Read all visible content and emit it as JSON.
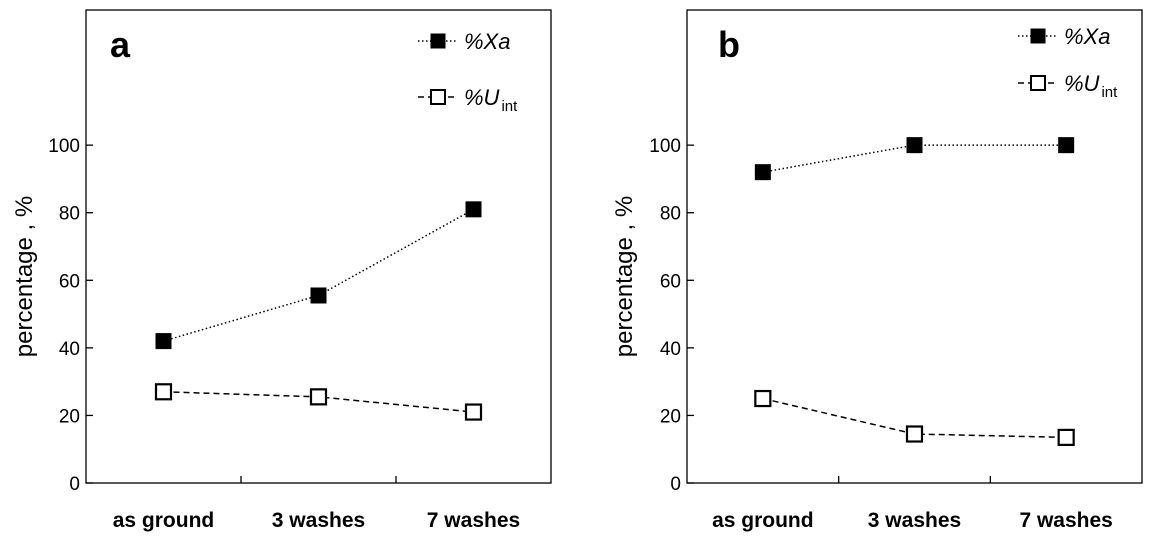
{
  "chart_data": [
    {
      "type": "line",
      "panel_label": "a",
      "categories": [
        "as ground",
        "3 washes",
        "7 washes"
      ],
      "series": [
        {
          "name": "%Xa",
          "name_main": "%Xa",
          "name_sub": "",
          "values": [
            42,
            55.5,
            81
          ],
          "marker": "filled-square",
          "line": "dotted"
        },
        {
          "name": "%Uint",
          "name_main": "%U",
          "name_sub": "int",
          "values": [
            27,
            25.5,
            21
          ],
          "marker": "open-square",
          "line": "dashed"
        }
      ],
      "ylabel": "percentage , %",
      "yticks": [
        0,
        20,
        40,
        60,
        80,
        100
      ],
      "ylim": [
        0,
        140
      ],
      "legend_position": "top-right",
      "grid": false
    },
    {
      "type": "line",
      "panel_label": "b",
      "categories": [
        "as ground",
        "3 washes",
        "7 washes"
      ],
      "series": [
        {
          "name": "%Xa",
          "name_main": "%Xa",
          "name_sub": "",
          "values": [
            92,
            100,
            100
          ],
          "marker": "filled-square",
          "line": "dotted"
        },
        {
          "name": "%Uint",
          "name_main": "%U",
          "name_sub": "int",
          "values": [
            25,
            14.5,
            13.5
          ],
          "marker": "open-square",
          "line": "dashed"
        }
      ],
      "ylabel": "percentage , %",
      "yticks": [
        0,
        20,
        40,
        60,
        80,
        100
      ],
      "ylim": [
        0,
        140
      ],
      "legend_position": "top-right",
      "grid": false
    }
  ]
}
